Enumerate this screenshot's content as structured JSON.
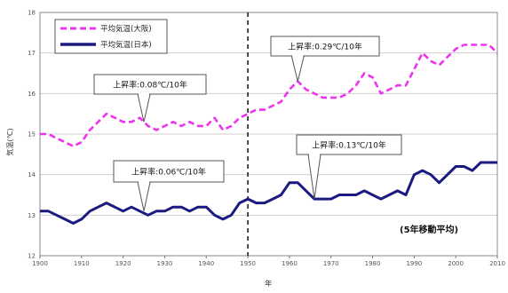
{
  "chart_data": {
    "type": "line",
    "title": "",
    "xlabel": "年",
    "ylabel": "気温(℃)",
    "xlim": [
      1900,
      2010
    ],
    "ylim": [
      12,
      18
    ],
    "x_ticks": [
      1900,
      1910,
      1920,
      1930,
      1940,
      1950,
      1960,
      1970,
      1980,
      1990,
      2000,
      2010
    ],
    "y_ticks": [
      12,
      13,
      14,
      15,
      16,
      17,
      18
    ],
    "grid": "horizontal",
    "legend_position": "top-left",
    "divider_year": 1950,
    "series": [
      {
        "name": "平均気温(大阪)",
        "color": "#ee33ee",
        "style": "dashed",
        "x": [
          1900,
          1902,
          1904,
          1906,
          1908,
          1910,
          1912,
          1914,
          1916,
          1918,
          1920,
          1922,
          1924,
          1926,
          1928,
          1930,
          1932,
          1934,
          1936,
          1938,
          1940,
          1942,
          1944,
          1946,
          1948,
          1950,
          1952,
          1954,
          1956,
          1958,
          1960,
          1962,
          1964,
          1966,
          1968,
          1970,
          1972,
          1974,
          1976,
          1978,
          1980,
          1982,
          1984,
          1986,
          1988,
          1990,
          1992,
          1994,
          1996,
          1998,
          2000,
          2002,
          2004,
          2006,
          2008,
          2010
        ],
        "values": [
          15.0,
          15.0,
          14.9,
          14.8,
          14.7,
          14.8,
          15.1,
          15.3,
          15.5,
          15.4,
          15.3,
          15.3,
          15.4,
          15.2,
          15.1,
          15.2,
          15.3,
          15.2,
          15.3,
          15.2,
          15.2,
          15.4,
          15.1,
          15.2,
          15.4,
          15.5,
          15.6,
          15.6,
          15.7,
          15.8,
          16.1,
          16.3,
          16.1,
          16.0,
          15.9,
          15.9,
          15.9,
          16.0,
          16.2,
          16.5,
          16.4,
          16.0,
          16.1,
          16.2,
          16.2,
          16.6,
          17.0,
          16.8,
          16.7,
          16.9,
          17.1,
          17.2,
          17.2,
          17.2,
          17.2,
          17.0
        ]
      },
      {
        "name": "平均気温(日本)",
        "color": "#1a1a80",
        "style": "solid",
        "x": [
          1900,
          1902,
          1904,
          1906,
          1908,
          1910,
          1912,
          1914,
          1916,
          1918,
          1920,
          1922,
          1924,
          1926,
          1928,
          1930,
          1932,
          1934,
          1936,
          1938,
          1940,
          1942,
          1944,
          1946,
          1948,
          1950,
          1952,
          1954,
          1956,
          1958,
          1960,
          1962,
          1964,
          1966,
          1968,
          1970,
          1972,
          1974,
          1976,
          1978,
          1980,
          1982,
          1984,
          1986,
          1988,
          1990,
          1992,
          1994,
          1996,
          1998,
          2000,
          2002,
          2004,
          2006,
          2008,
          2010
        ],
        "values": [
          13.1,
          13.1,
          13.0,
          12.9,
          12.8,
          12.9,
          13.1,
          13.2,
          13.3,
          13.2,
          13.1,
          13.2,
          13.1,
          13.0,
          13.1,
          13.1,
          13.2,
          13.2,
          13.1,
          13.2,
          13.2,
          13.0,
          12.9,
          13.0,
          13.3,
          13.4,
          13.3,
          13.3,
          13.4,
          13.5,
          13.8,
          13.8,
          13.6,
          13.4,
          13.4,
          13.4,
          13.5,
          13.5,
          13.5,
          13.6,
          13.5,
          13.4,
          13.5,
          13.6,
          13.5,
          14.0,
          14.1,
          14.0,
          13.8,
          14.0,
          14.2,
          14.2,
          14.1,
          14.3,
          14.3,
          14.3
        ]
      }
    ],
    "annotations": [
      {
        "text": "上昇率:0.08℃/10年",
        "year": 1925,
        "value": 15.3
      },
      {
        "text": "上昇率:0.29℃/10年",
        "year": 1962,
        "value": 16.3
      },
      {
        "text": "上昇率:0.06℃/10年",
        "year": 1925,
        "value": 13.1
      },
      {
        "text": "上昇率:0.13℃/10年",
        "year": 1966,
        "value": 13.4
      }
    ],
    "note": "(5年移動平均)"
  }
}
